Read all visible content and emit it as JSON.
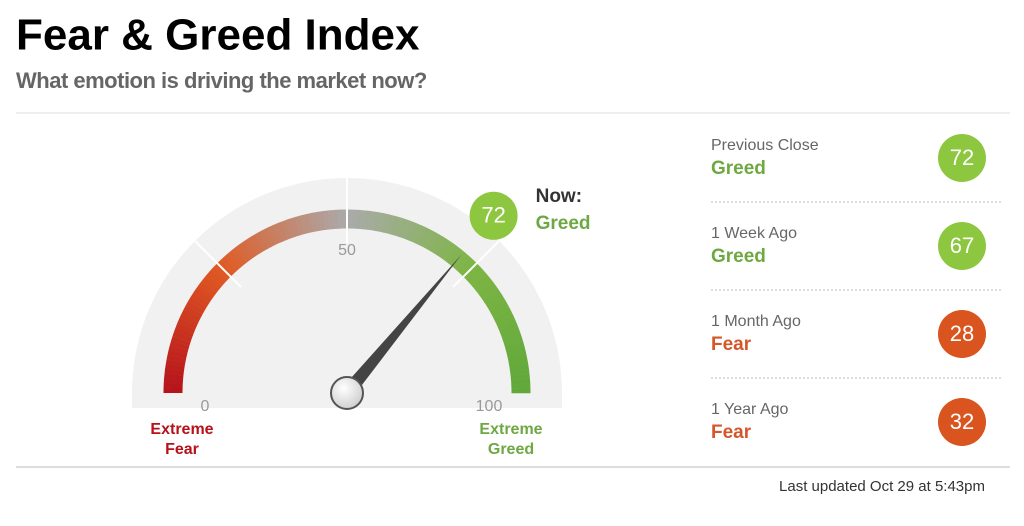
{
  "header": {
    "title": "Fear & Greed Index",
    "subtitle": "What emotion is driving the market now?"
  },
  "gauge": {
    "value": 72,
    "min": 0,
    "max": 100,
    "ticks": [
      0,
      50,
      100
    ],
    "now_label": "Now:",
    "now_rating": "Greed",
    "now_color": "#8dc63f",
    "rating_color": "#6ea843",
    "low_label": "Extreme Fear",
    "low_color": "#b5121b",
    "high_label": "Extreme Greed",
    "high_color": "#6ea843"
  },
  "history": [
    {
      "label": "Previous Close",
      "rating": "Greed",
      "value": 72,
      "text_color": "#6ea843",
      "circle_color": "#8dc63f"
    },
    {
      "label": "1 Week Ago",
      "rating": "Greed",
      "value": 67,
      "text_color": "#6ea843",
      "circle_color": "#8dc63f"
    },
    {
      "label": "1 Month Ago",
      "rating": "Fear",
      "value": 28,
      "text_color": "#d4562a",
      "circle_color": "#d9541e"
    },
    {
      "label": "1 Year Ago",
      "rating": "Fear",
      "value": 32,
      "text_color": "#d4562a",
      "circle_color": "#d9541e"
    }
  ],
  "footer": "Last updated Oct 29 at 5:43pm"
}
